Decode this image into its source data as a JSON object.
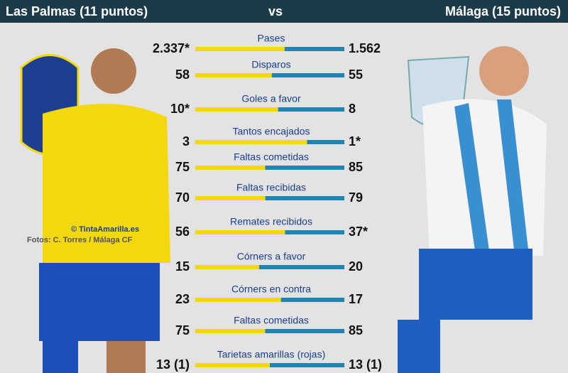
{
  "chart_data": {
    "type": "butterfly",
    "title": "vs",
    "categories": [
      "Pases",
      "Disparos",
      "Goles a favor",
      "Tantos encajados",
      "Faltas cometidas",
      "Faltas recibidas",
      "Remates recibidos",
      "Córners a favor",
      "Córners en contra",
      "Faltas cometidas",
      "Tarietas amarillas (rojas)"
    ],
    "series": [
      {
        "name": "Las Palmas (11 puntos)",
        "color": "#f2d80c",
        "values": [
          2337,
          58,
          10,
          3,
          75,
          70,
          56,
          15,
          23,
          75,
          13
        ],
        "value_labels": [
          "2.337*",
          "58",
          "10*",
          "3",
          "75",
          "70",
          "56",
          "15",
          "23",
          "75",
          "13 (1)"
        ]
      },
      {
        "name": "Málaga (15 puntos)",
        "color": "#1f86b3",
        "values": [
          1562,
          55,
          8,
          1,
          85,
          79,
          37,
          20,
          17,
          85,
          13
        ],
        "value_labels": [
          "1.562",
          "55",
          "8",
          "1*",
          "85",
          "79",
          "37*",
          "20",
          "17",
          "85",
          "13 (1)"
        ]
      }
    ],
    "annotations": [
      "© TintaAmarilla.es",
      "Fotos: C. Torres / Málaga CF"
    ]
  }
}
